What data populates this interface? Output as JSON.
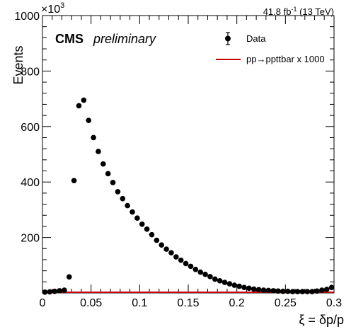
{
  "chart_data": {
    "type": "scatter",
    "title": "",
    "xlabel": "ξ = δp/p",
    "ylabel": "Events",
    "y_multiplier": "×10",
    "y_multiplier_exponent": "3",
    "xlim": [
      0,
      0.3
    ],
    "ylim": [
      0,
      1000
    ],
    "grid": false,
    "x_tick_labels": [
      "0",
      "0.05",
      "0.1",
      "0.15",
      "0.2",
      "0.25",
      "0.3"
    ],
    "y_tick_labels": [
      "200",
      "400",
      "600",
      "800",
      "1000"
    ],
    "lumi_label": "41.8 fb",
    "lumi_exponent": "-1",
    "lumi_suffix": " (13 TeV)",
    "experiment": "CMS",
    "status": "preliminary",
    "legend_position": "top-right",
    "series": [
      {
        "name": "Data",
        "style": "markers-with-errors",
        "color": "#000000",
        "x": [
          0.0025,
          0.0075,
          0.0125,
          0.0175,
          0.0225,
          0.0275,
          0.0325,
          0.0375,
          0.0425,
          0.0475,
          0.0525,
          0.0575,
          0.0625,
          0.0675,
          0.0725,
          0.0775,
          0.0825,
          0.0875,
          0.0925,
          0.0975,
          0.1025,
          0.1075,
          0.1125,
          0.1175,
          0.1225,
          0.1275,
          0.1325,
          0.1375,
          0.1425,
          0.1475,
          0.1525,
          0.1575,
          0.1625,
          0.1675,
          0.1725,
          0.1775,
          0.1825,
          0.1875,
          0.1925,
          0.1975,
          0.2025,
          0.2075,
          0.2125,
          0.2175,
          0.2225,
          0.2275,
          0.2325,
          0.2375,
          0.2425,
          0.2475,
          0.2525,
          0.2575,
          0.2625,
          0.2675,
          0.2725,
          0.2775,
          0.2825,
          0.2875,
          0.2925,
          0.2975
        ],
        "y": [
          3,
          4,
          6,
          8,
          10,
          58,
          405,
          675,
          695,
          622,
          560,
          510,
          465,
          430,
          398,
          365,
          340,
          315,
          292,
          270,
          248,
          230,
          210,
          190,
          173,
          158,
          145,
          130,
          118,
          106,
          96,
          85,
          75,
          67,
          59,
          50,
          44,
          38,
          33,
          28,
          24,
          20,
          17,
          14,
          12,
          10,
          9,
          8,
          7,
          6,
          6,
          5,
          5,
          5,
          5,
          5,
          7,
          10,
          13,
          20
        ]
      },
      {
        "name": "pp→ppttbar x 1000",
        "style": "line",
        "color": "#cc0000",
        "x": [
          0,
          0.3
        ],
        "y": [
          0,
          0
        ]
      }
    ]
  }
}
